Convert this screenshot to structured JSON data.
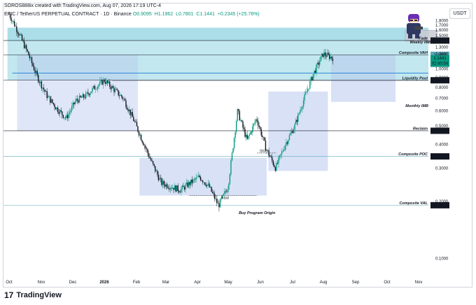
{
  "header": {
    "publisher": "SOROS888ix created with TradingView.com, Aug 07, 2026 17:19 UTC-4"
  },
  "symbol_bar": {
    "name": "EPIC / TetherUS PERPETUAL CONTRACT · 1D · Binance",
    "open": "O0.9095",
    "high": "H1.1962",
    "low": "L0.7801",
    "close": "C1.1441",
    "change": "+0.2345 (+25.78%)"
  },
  "currency": "USDT",
  "footer": {
    "brand": "TradingView",
    "logo_glyph": "17"
  },
  "chart_data": {
    "type": "candlestick",
    "y_scale": "log",
    "ylim": [
      0.08,
      2.05
    ],
    "y_ticks": [
      "1.8000",
      "1.7000",
      "1.6000",
      "1.5000",
      "1.3000",
      "1.2000",
      "1.0000",
      "0.9000",
      "0.8000",
      "0.7000",
      "0.6000",
      "0.5000",
      "0.4000",
      "0.3000",
      "0.2000",
      "0.1000"
    ],
    "x_ticks": [
      "Oct",
      "Nov",
      "Dec",
      "2026",
      "Feb",
      "Mar",
      "Apr",
      "May",
      "Jun",
      "Jul",
      "Aug",
      "Sep",
      "Oct",
      "Nov"
    ],
    "price_path": [
      [
        "Oct",
        1.95
      ],
      [
        "Oct",
        1.55
      ],
      [
        "Oct",
        1.2
      ],
      [
        "Nov",
        0.9
      ],
      [
        "Nov",
        0.72
      ],
      [
        "Nov",
        0.62
      ],
      [
        "Dec",
        0.55
      ],
      [
        "Dec",
        0.68
      ],
      [
        "Dec",
        0.72
      ],
      [
        "Dec",
        0.8
      ],
      [
        "Dec",
        0.87
      ],
      [
        "2026",
        0.78
      ],
      [
        "2026",
        0.7
      ],
      [
        "2026",
        0.55
      ],
      [
        "Feb",
        0.42
      ],
      [
        "Feb",
        0.32
      ],
      [
        "Mar",
        0.25
      ],
      [
        "Mar",
        0.24
      ],
      [
        "Apr",
        0.23
      ],
      [
        "Apr",
        0.25
      ],
      [
        "May",
        0.27
      ],
      [
        "May",
        0.24
      ],
      [
        "May",
        0.19
      ],
      [
        "Jun",
        0.24
      ],
      [
        "Jun",
        0.6
      ],
      [
        "Jun",
        0.42
      ],
      [
        "Jul",
        0.55
      ],
      [
        "Jul",
        0.38
      ],
      [
        "Jul",
        0.3
      ],
      [
        "Jul",
        0.4
      ],
      [
        "Jul",
        0.5
      ],
      [
        "Aug",
        0.7
      ],
      [
        "Aug",
        0.95
      ],
      [
        "Aug",
        1.2
      ],
      [
        "Aug",
        1.1441
      ]
    ],
    "levels": [
      {
        "label": "Fade",
        "price_label": "1.4113",
        "value": 1.4113
      },
      {
        "label": "Composite VAH",
        "price_label": "1.1868",
        "value": 1.1868
      },
      {
        "label": "Liquidity Pool",
        "price_label": "0.8714",
        "value": 0.8714
      },
      {
        "label": "Reclaim",
        "price_label": "0.4721",
        "value": 0.4721
      },
      {
        "label": "Composite POC",
        "price_label": "0.3459",
        "value": 0.3459
      },
      {
        "label": "Composite VAL",
        "price_label": "0.1912",
        "value": 0.1912
      }
    ],
    "current_price": {
      "value": 1.1441,
      "label": "1.1441",
      "countdown": "02:40:54"
    },
    "zones": [
      {
        "label": "Weekly IMB",
        "from": 1.4113,
        "to": 1.65
      },
      {
        "label": "Monthly IMB",
        "from": 0.8714,
        "to": 1.4113
      }
    ],
    "annotations": [
      "Shift",
      "Raid",
      "Buy Program Origin"
    ],
    "colors": {
      "up": "#089981",
      "down": "#131722",
      "imbalance_zone": "#8fd3e0",
      "range_box": "#b8c8ee",
      "level_line": "#131722",
      "poc_line": "#5aa9b9"
    }
  }
}
